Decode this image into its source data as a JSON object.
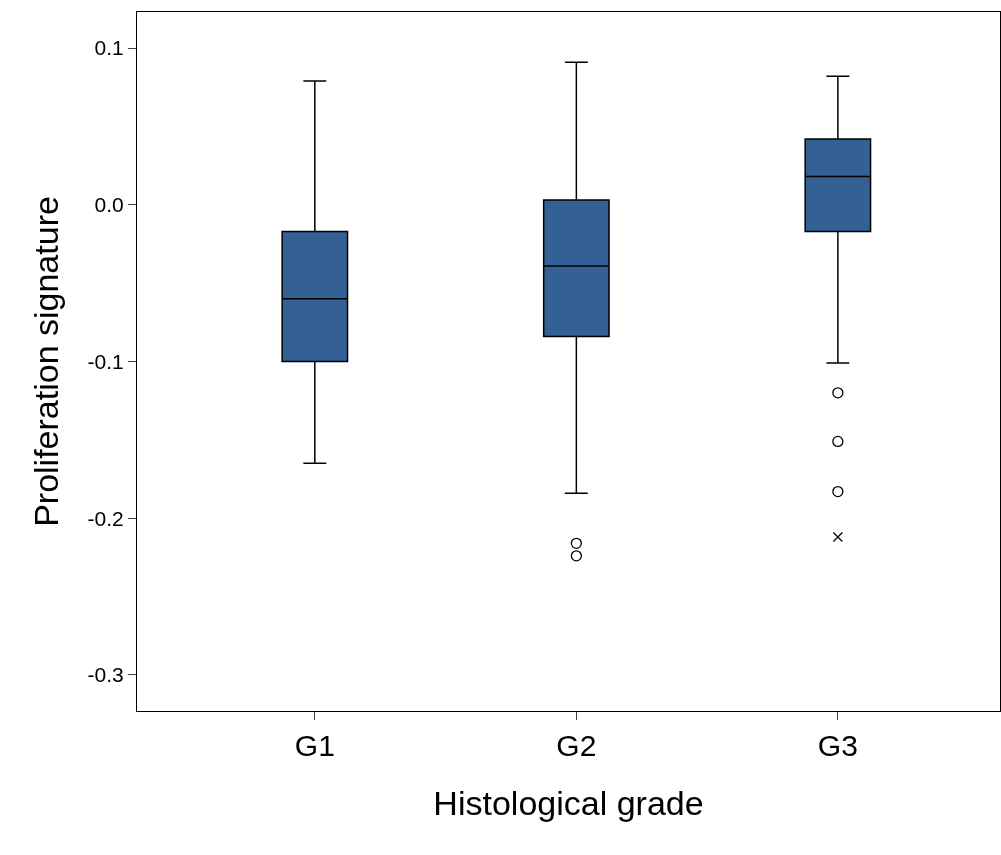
{
  "chart_data": {
    "type": "box",
    "xlabel": "Histological grade",
    "ylabel": "Proliferation signature",
    "categories": [
      "G1",
      "G2",
      "G3"
    ],
    "series": [
      {
        "color": "#336195",
        "boxes": [
          {
            "low": -0.165,
            "q1": -0.1,
            "median": -0.06,
            "q3": -0.017,
            "high": 0.079
          },
          {
            "low": -0.184,
            "q1": -0.084,
            "median": -0.039,
            "q3": 0.003,
            "high": 0.091,
            "outliers": [
              -0.216,
              -0.224
            ]
          },
          {
            "low": -0.101,
            "q1": -0.017,
            "median": 0.018,
            "q3": 0.042,
            "high": 0.082,
            "outliers": [
              -0.12,
              -0.151,
              -0.183
            ]
          }
        ]
      },
      {
        "type": "scatter",
        "marker": "cross",
        "color": "#000000",
        "x": [
          "G3"
        ],
        "values": [
          -0.212
        ]
      }
    ],
    "ylim": [
      -0.323,
      0.123
    ],
    "yticks": [
      {
        "value": -0.3,
        "label": "-0.3"
      },
      {
        "value": -0.2,
        "label": "-0.2"
      },
      {
        "value": -0.1,
        "label": "-0.1"
      },
      {
        "value": 0,
        "label": "0.0"
      },
      {
        "value": 0.1,
        "label": "0.1"
      }
    ]
  }
}
